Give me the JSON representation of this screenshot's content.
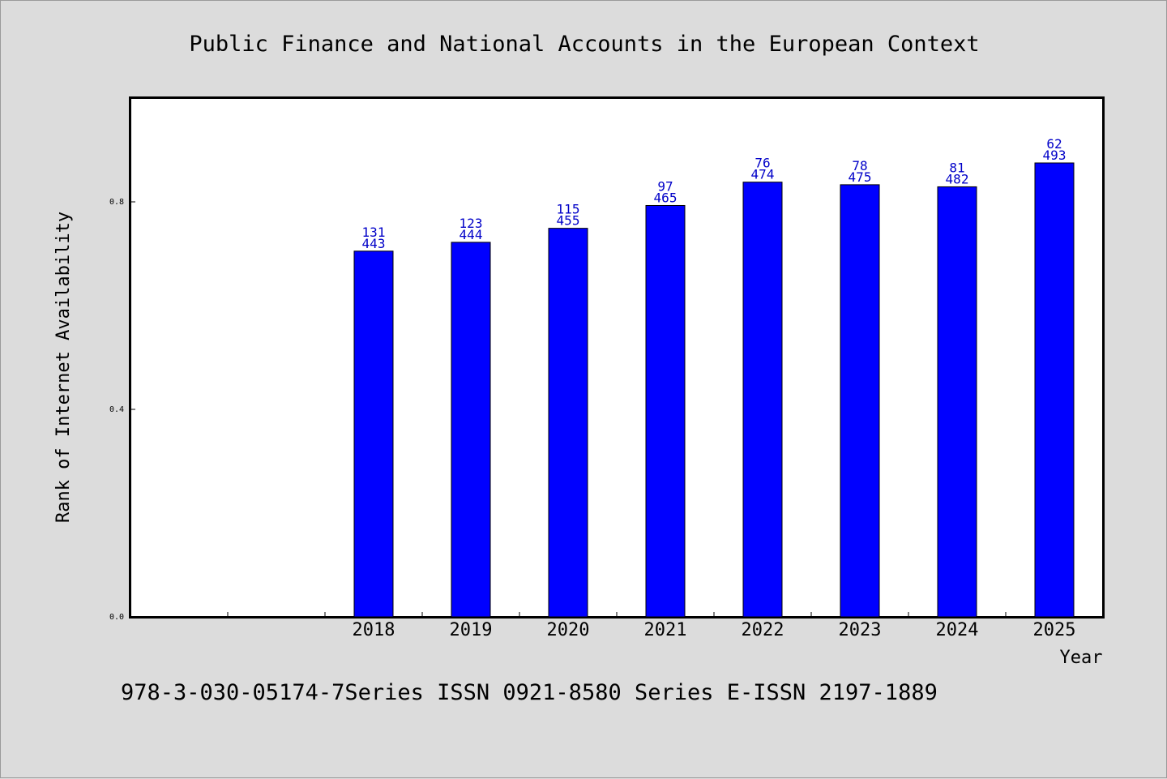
{
  "chart_data": {
    "type": "bar",
    "title": "Public Finance and National Accounts in the European Context",
    "xlabel": "Year",
    "ylabel": "Rank of Internet Availability",
    "categories": [
      "2018",
      "2019",
      "2020",
      "2021",
      "2022",
      "2023",
      "2024",
      "2025"
    ],
    "values": [
      0.705,
      0.722,
      0.749,
      0.793,
      0.838,
      0.833,
      0.829,
      0.875
    ],
    "labels_top": [
      "131",
      "123",
      "115",
      "97",
      "76",
      "78",
      "81",
      "62"
    ],
    "labels_bottom": [
      "443",
      "444",
      "455",
      "465",
      "474",
      "475",
      "482",
      "493"
    ],
    "yticks": [
      {
        "value": 0.0,
        "label": "0.0"
      },
      {
        "value": 0.4,
        "label": "0.4"
      },
      {
        "value": 0.8,
        "label": "0.8"
      }
    ],
    "ylim": [
      0,
      1.0
    ],
    "empty_leading_slots": 2,
    "bar_color": "#0000ff",
    "label_color": "#0000c8",
    "grid": false,
    "legend": "none"
  },
  "footer": "978-3-030-05174-7Series ISSN 0921-8580 Series E-ISSN 2197-1889"
}
